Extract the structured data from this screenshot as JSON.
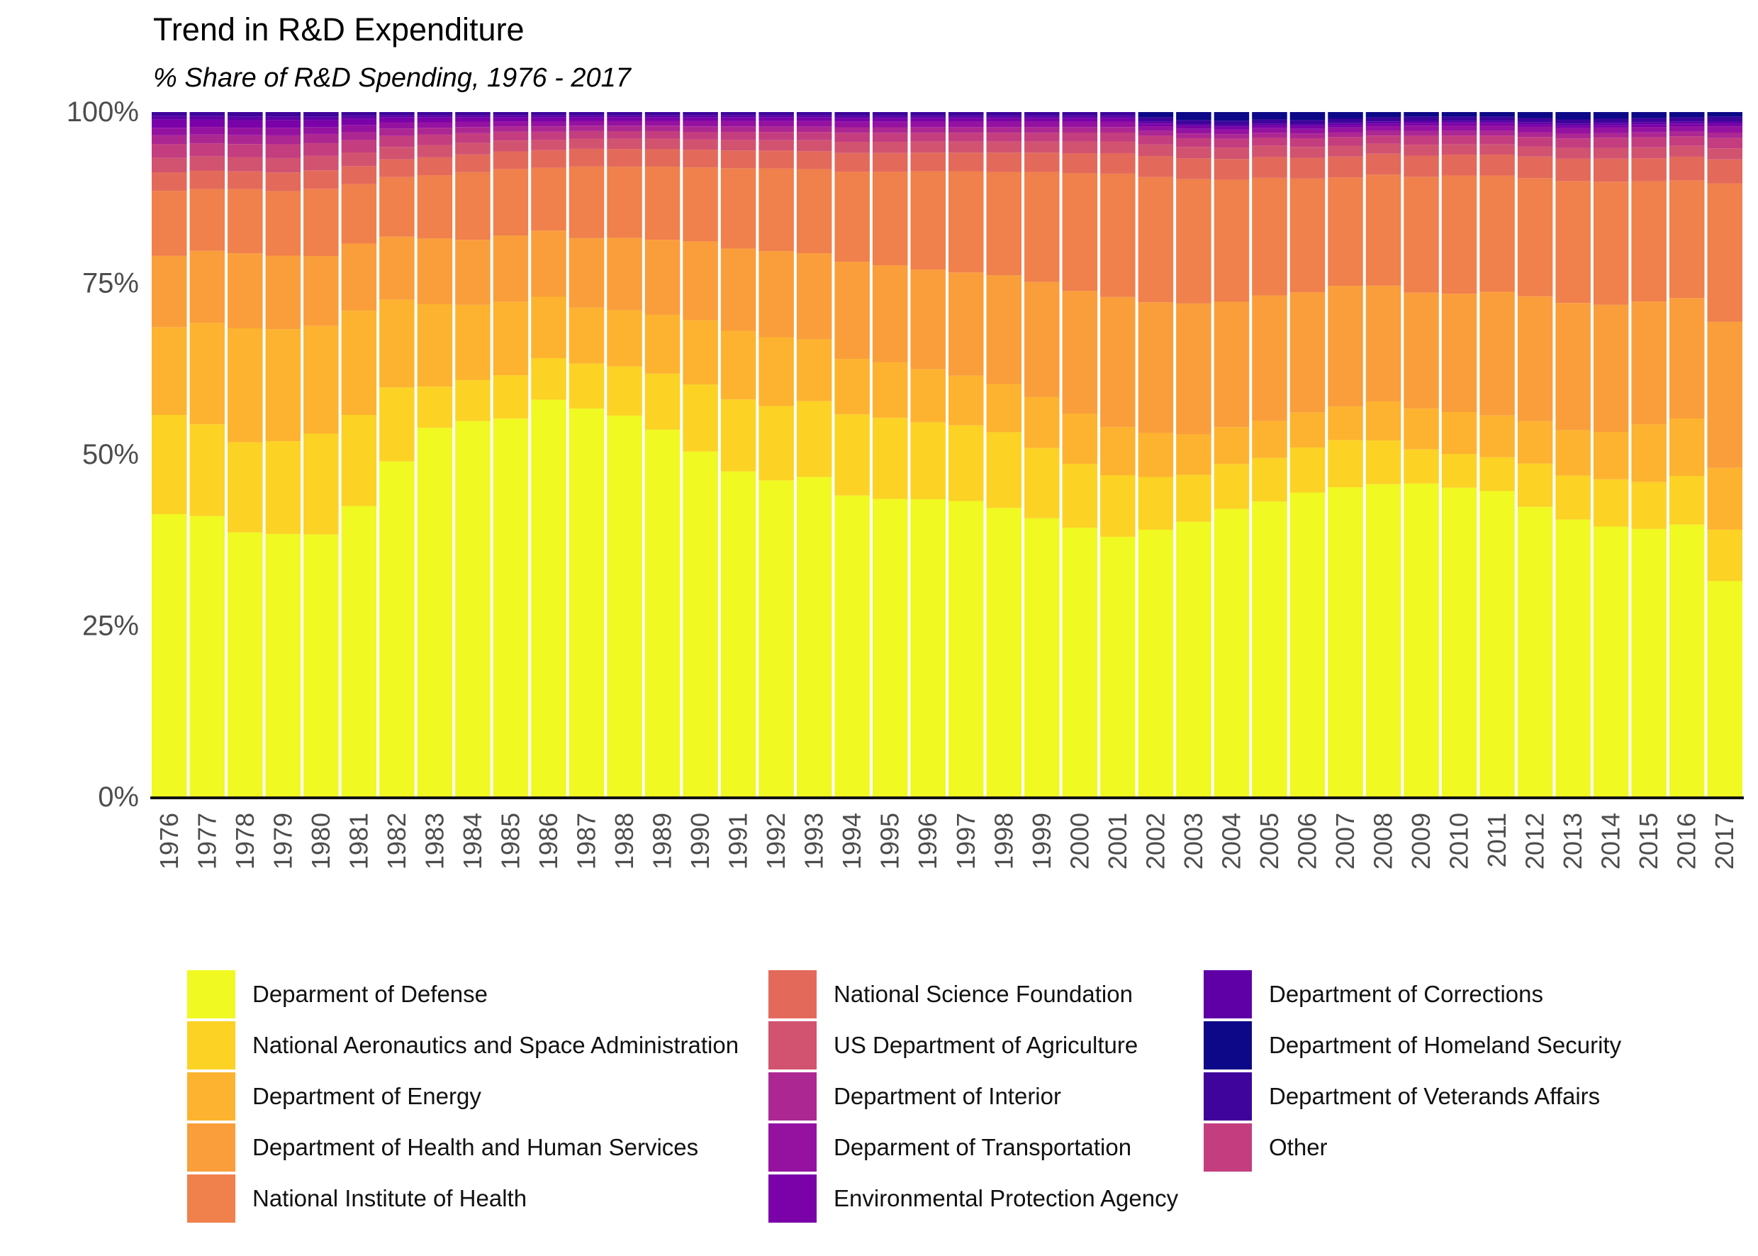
{
  "chart_data": {
    "type": "bar",
    "stacked": "percent",
    "title": "Trend in R&D Expenditure",
    "subtitle": "% Share of R&D Spending, 1976 - 2017",
    "xlabel": "",
    "ylabel": "",
    "ylim": [
      0,
      100
    ],
    "y_ticks": [
      "0%",
      "25%",
      "50%",
      "75%",
      "100%"
    ],
    "y_tick_values": [
      0,
      25,
      50,
      75,
      100
    ],
    "grid": false,
    "legend_position": "bottom",
    "categories": [
      "1976",
      "1977",
      "1978",
      "1979",
      "1980",
      "1981",
      "1982",
      "1983",
      "1984",
      "1985",
      "1986",
      "1987",
      "1988",
      "1989",
      "1990",
      "1991",
      "1992",
      "1993",
      "1994",
      "1995",
      "1996",
      "1997",
      "1998",
      "1999",
      "2000",
      "2001",
      "2002",
      "2003",
      "2004",
      "2005",
      "2006",
      "2007",
      "2008",
      "2009",
      "2010",
      "2011",
      "2012",
      "2013",
      "2014",
      "2015",
      "2016",
      "2017"
    ],
    "series": [
      {
        "name": "Deparment of Defense",
        "color": "#F0F921",
        "values": [
          41.3,
          41.3,
          38.8,
          38.3,
          38.3,
          42.5,
          49.0,
          53.8,
          55.0,
          55.8,
          58.3,
          57.0,
          55.8,
          53.8,
          50.5,
          47.5,
          46.0,
          46.5,
          43.5,
          43.0,
          43.3,
          43.0,
          42.0,
          40.5,
          39.3,
          38.0,
          39.5,
          41.0,
          43.0,
          44.0,
          45.3,
          46.0,
          46.5,
          46.0,
          45.8,
          45.3,
          43.0,
          41.0,
          40.0,
          39.5,
          40.3,
          31.5
        ]
      },
      {
        "name": "National Aeronautics and Space Administration",
        "color": "#FCD225",
        "values": [
          14.5,
          13.5,
          13.2,
          13.5,
          14.7,
          13.3,
          10.8,
          6.0,
          6.0,
          6.4,
          6.1,
          6.6,
          7.2,
          8.2,
          9.8,
          10.5,
          10.8,
          11.0,
          11.7,
          11.7,
          11.2,
          11.0,
          11.0,
          10.2,
          9.3,
          9.0,
          7.8,
          7.0,
          6.7,
          6.5,
          6.7,
          7.0,
          6.5,
          5.0,
          5.0,
          5.0,
          6.4,
          6.5,
          7.0,
          6.9,
          7.2,
          7.5
        ]
      },
      {
        "name": "Department of Energy",
        "color": "#FDB32F",
        "values": [
          12.8,
          14.9,
          16.7,
          16.3,
          15.7,
          15.2,
          12.8,
          12.0,
          11.0,
          10.8,
          9.0,
          8.2,
          8.2,
          8.6,
          9.4,
          10.0,
          10.0,
          9.0,
          8.0,
          8.0,
          7.7,
          7.2,
          7.0,
          7.4,
          7.3,
          7.0,
          6.5,
          6.0,
          5.5,
          5.5,
          5.2,
          5.0,
          5.8,
          6.0,
          6.2,
          6.2,
          6.3,
          6.7,
          7.0,
          8.5,
          8.5,
          9.0
        ]
      },
      {
        "name": "Department of Health and Human Services",
        "color": "#FA9E3B",
        "values": [
          10.4,
          10.6,
          11.0,
          10.7,
          10.2,
          9.8,
          9.2,
          9.6,
          9.5,
          9.8,
          9.7,
          10.2,
          10.6,
          11.0,
          11.5,
          12.0,
          12.5,
          12.5,
          14.0,
          14.0,
          14.5,
          15.0,
          15.8,
          16.7,
          17.9,
          19.0,
          19.3,
          19.5,
          18.7,
          18.7,
          17.9,
          17.9,
          17.2,
          17.0,
          17.5,
          18.3,
          18.5,
          18.8,
          18.8,
          18.1,
          17.8,
          21.3
        ]
      },
      {
        "name": "National Institute of Health",
        "color": "#F0804C",
        "values": [
          9.5,
          9.1,
          9.4,
          9.4,
          9.8,
          8.7,
          8.7,
          9.2,
          9.9,
          9.8,
          9.2,
          10.5,
          10.4,
          10.7,
          10.8,
          11.7,
          12.0,
          12.2,
          13.0,
          13.5,
          14.3,
          14.7,
          15.0,
          16.0,
          17.2,
          18.0,
          18.5,
          18.5,
          18.2,
          17.5,
          16.9,
          16.1,
          16.5,
          17.0,
          17.5,
          17.2,
          17.5,
          18.0,
          18.2,
          17.7,
          17.4,
          20.2
        ]
      },
      {
        "name": "National Science Foundation",
        "color": "#E36A5B",
        "values": [
          2.7,
          2.7,
          2.6,
          2.7,
          2.7,
          2.6,
          2.6,
          2.6,
          2.6,
          2.6,
          2.6,
          2.6,
          2.6,
          2.6,
          2.6,
          2.6,
          2.6,
          2.6,
          2.7,
          2.7,
          2.7,
          2.7,
          2.8,
          2.8,
          2.9,
          3.0,
          3.1,
          3.1,
          3.1,
          3.1,
          3.1,
          3.1,
          3.1,
          3.1,
          3.1,
          3.1,
          3.2,
          3.3,
          3.4,
          3.4,
          3.5,
          3.5
        ]
      },
      {
        "name": "US Department of Agriculture",
        "color": "#D25370",
        "values": [
          2.1,
          2.1,
          2.1,
          2.1,
          2.1,
          2.0,
          1.8,
          1.8,
          1.7,
          1.6,
          1.5,
          1.5,
          1.5,
          1.5,
          1.5,
          1.5,
          1.5,
          1.6,
          1.6,
          1.6,
          1.6,
          1.6,
          1.6,
          1.6,
          1.7,
          1.7,
          1.7,
          1.7,
          1.7,
          1.7,
          1.6,
          1.6,
          1.5,
          1.6,
          1.5,
          1.5,
          1.5,
          1.6,
          1.6,
          1.6,
          1.6,
          1.6
        ]
      },
      {
        "name": "Other",
        "color": "#C43E7F",
        "values": [
          2.0,
          1.9,
          1.9,
          2.0,
          1.9,
          1.8,
          1.6,
          1.5,
          1.4,
          1.3,
          1.2,
          1.1,
          1.1,
          1.1,
          1.1,
          1.2,
          1.2,
          1.2,
          1.3,
          1.3,
          1.3,
          1.3,
          1.3,
          1.3,
          1.3,
          1.3,
          1.3,
          1.3,
          1.3,
          1.2,
          1.3,
          1.3,
          1.2,
          1.3,
          1.3,
          1.3,
          1.4,
          1.4,
          1.5,
          1.5,
          1.4,
          1.5
        ]
      },
      {
        "name": "Department of Interior",
        "color": "#AD2793",
        "values": [
          1.3,
          1.3,
          1.3,
          1.3,
          1.3,
          1.2,
          1.1,
          1.0,
          0.9,
          0.8,
          0.8,
          0.8,
          0.8,
          0.8,
          0.8,
          0.8,
          0.8,
          0.8,
          0.8,
          0.8,
          0.8,
          0.8,
          0.8,
          0.8,
          0.8,
          0.8,
          0.7,
          0.7,
          0.7,
          0.7,
          0.7,
          0.7,
          0.7,
          0.7,
          0.7,
          0.7,
          0.7,
          0.7,
          0.7,
          0.7,
          0.7,
          0.8
        ]
      },
      {
        "name": "Deparment of Transportation",
        "color": "#9512A1",
        "values": [
          1.1,
          1.1,
          1.1,
          1.1,
          1.0,
          1.0,
          0.9,
          0.8,
          0.8,
          0.7,
          0.7,
          0.7,
          0.7,
          0.7,
          0.8,
          0.8,
          0.8,
          0.8,
          0.8,
          0.8,
          0.8,
          0.8,
          0.8,
          0.8,
          0.8,
          0.8,
          0.7,
          0.7,
          0.7,
          0.7,
          0.7,
          0.7,
          0.7,
          0.8,
          0.8,
          0.8,
          0.8,
          0.8,
          0.8,
          0.8,
          0.8,
          0.9
        ]
      },
      {
        "name": "Environmental Protection Agency",
        "color": "#7A02A8",
        "values": [
          1.2,
          1.1,
          1.1,
          1.1,
          1.0,
          0.9,
          0.7,
          0.7,
          0.6,
          0.6,
          0.6,
          0.5,
          0.5,
          0.5,
          0.5,
          0.5,
          0.5,
          0.5,
          0.5,
          0.5,
          0.5,
          0.5,
          0.5,
          0.5,
          0.5,
          0.5,
          0.4,
          0.4,
          0.4,
          0.4,
          0.4,
          0.4,
          0.4,
          0.4,
          0.4,
          0.4,
          0.4,
          0.4,
          0.4,
          0.4,
          0.4,
          0.4
        ]
      },
      {
        "name": "Department of Corrections",
        "color": "#5F00A6",
        "values": [
          0.5,
          0.5,
          0.5,
          0.5,
          0.5,
          0.4,
          0.3,
          0.3,
          0.3,
          0.3,
          0.3,
          0.3,
          0.3,
          0.3,
          0.3,
          0.3,
          0.3,
          0.3,
          0.3,
          0.3,
          0.3,
          0.3,
          0.3,
          0.3,
          0.3,
          0.3,
          0.3,
          0.3,
          0.3,
          0.3,
          0.3,
          0.3,
          0.3,
          0.3,
          0.3,
          0.3,
          0.3,
          0.3,
          0.3,
          0.3,
          0.3,
          0.3
        ]
      },
      {
        "name": "Department of Veterands Affairs",
        "color": "#3E049C",
        "values": [
          0.6,
          0.6,
          0.7,
          0.7,
          0.7,
          0.6,
          0.5,
          0.5,
          0.5,
          0.5,
          0.5,
          0.5,
          0.5,
          0.5,
          0.5,
          0.5,
          0.5,
          0.5,
          0.6,
          0.6,
          0.6,
          0.6,
          0.6,
          0.6,
          0.6,
          0.6,
          0.6,
          0.6,
          0.6,
          0.6,
          0.6,
          0.6,
          0.6,
          0.6,
          0.6,
          0.6,
          0.6,
          0.6,
          0.6,
          0.6,
          0.6,
          0.7
        ]
      },
      {
        "name": "Department of Homeland Security",
        "color": "#0D0887",
        "values": [
          0,
          0,
          0,
          0,
          0,
          0,
          0,
          0,
          0,
          0,
          0,
          0,
          0,
          0,
          0,
          0,
          0,
          0,
          0,
          0,
          0,
          0,
          0,
          0,
          0,
          0,
          0.8,
          1.2,
          1.3,
          1.1,
          1.2,
          1.0,
          0.8,
          0.7,
          0.7,
          0.7,
          0.9,
          1.1,
          1.0,
          0.9,
          0.8,
          0.7
        ]
      }
    ],
    "legend_order": [
      "Deparment of Defense",
      "National Aeronautics and Space Administration",
      "Department of Energy",
      "Department of Health and Human Services",
      "National Institute of Health",
      "National Science Foundation",
      "US Department of Agriculture",
      "Department of Interior",
      "Deparment of Transportation",
      "Environmental Protection Agency",
      "Department of Corrections",
      "Department of Homeland Security",
      "Department of Veterands Affairs",
      "Other"
    ]
  }
}
